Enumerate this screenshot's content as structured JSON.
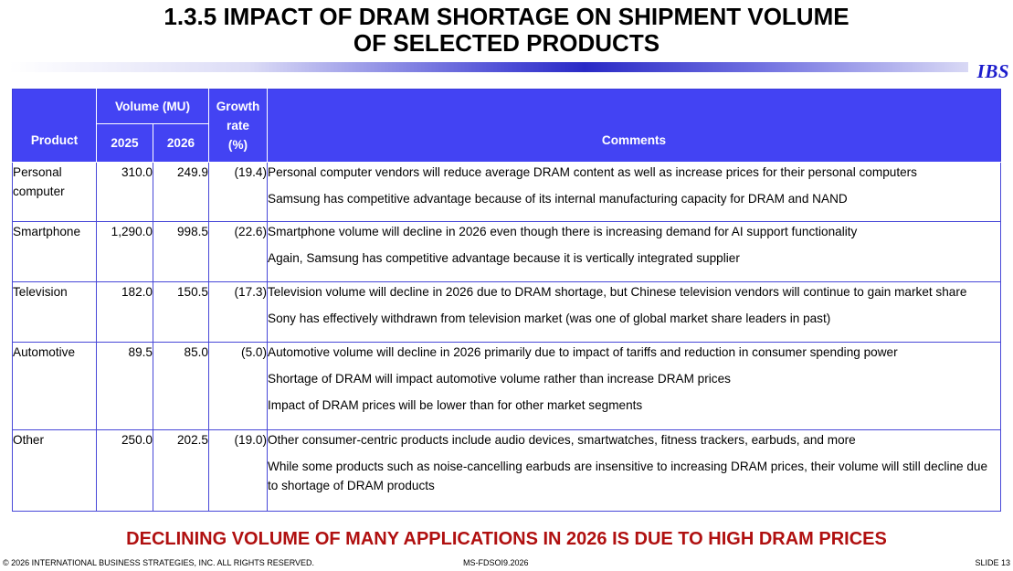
{
  "slide": {
    "title_line1": "1.3.5  IMPACT OF DRAM SHORTAGE ON SHIPMENT VOLUME",
    "title_line2": "OF SELECTED PRODUCTS",
    "logo": "IBS",
    "banner": "DECLINING VOLUME OF MANY APPLICATIONS IN 2026 IS DUE TO HIGH DRAM PRICES"
  },
  "table": {
    "headers": {
      "product": "Product",
      "volume": "Volume (MU)",
      "year1": "2025",
      "year2": "2026",
      "growth_line1": "Growth",
      "growth_line2": "rate",
      "growth_line3": "(%)",
      "comments": "Comments"
    },
    "rows": [
      {
        "product_line1": "Personal",
        "product_line2": "computer",
        "v2025": "310.0",
        "v2026": "249.9",
        "growth": "(19.4)",
        "comments": [
          "Personal computer vendors will reduce average DRAM content as well as increase prices for their personal computers",
          "Samsung has competitive advantage because of its internal manufacturing capacity for DRAM and NAND"
        ]
      },
      {
        "product_line1": "Smartphone",
        "v2025": "1,290.0",
        "v2026": "998.5",
        "growth": "(22.6)",
        "comments": [
          "Smartphone volume will decline in 2026 even though there is increasing demand for AI support functionality",
          "Again, Samsung has competitive advantage because it is vertically integrated supplier"
        ]
      },
      {
        "product_line1": "Television",
        "v2025": "182.0",
        "v2026": "150.5",
        "growth": "(17.3)",
        "comments": [
          "Television volume will decline in 2026 due to DRAM shortage, but Chinese television vendors will continue to gain market share",
          "Sony has effectively withdrawn from television market (was one of global market share leaders in past)"
        ]
      },
      {
        "product_line1": "Automotive",
        "v2025": "89.5",
        "v2026": "85.0",
        "growth": "(5.0)",
        "comments": [
          "Automotive volume will decline in 2026 primarily due to impact of tariffs and reduction in consumer spending power",
          "Shortage of DRAM will impact automotive volume rather than increase DRAM prices",
          "Impact of DRAM prices will be lower than for other market segments"
        ]
      },
      {
        "product_line1": "Other",
        "v2025": "250.0",
        "v2026": "202.5",
        "growth": "(19.0)",
        "comments": [
          "Other consumer-centric products include audio devices, smartwatches, fitness trackers, earbuds, and more",
          "While some products such as noise-cancelling earbuds are insensitive to increasing DRAM prices, their volume will still decline due to shortage of DRAM products"
        ]
      }
    ]
  },
  "footer": {
    "copyright": "© 2026 INTERNATIONAL BUSINESS STRATEGIES, INC. ALL RIGHTS RESERVED.",
    "doc_id": "MS-FDSOI9.2026",
    "slide_number": "SLIDE 13"
  },
  "colors": {
    "header_fill": "#4343f3",
    "table_border": "#4848d8",
    "banner_text": "#b01010",
    "logo_text": "#1c1ccc"
  }
}
